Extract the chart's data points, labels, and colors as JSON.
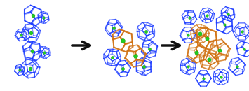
{
  "bg_color": "#ffffff",
  "blue_color": "#1a3aff",
  "orange_color": "#d07010",
  "green_color": "#22cc22",
  "arrow_color": "#111111",
  "figsize": [
    3.55,
    1.3
  ],
  "dpi": 100
}
